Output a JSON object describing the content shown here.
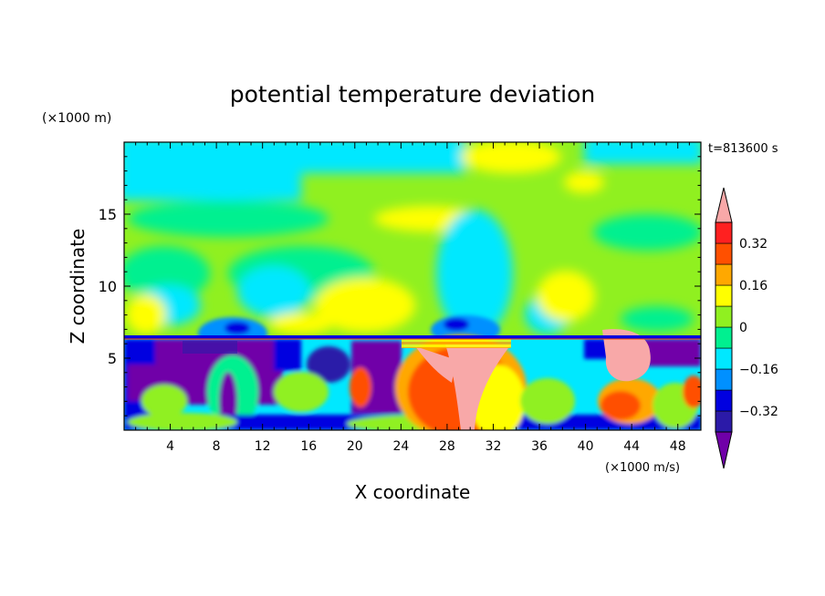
{
  "chart_data": {
    "type": "heatmap",
    "title": "potential temperature deviation",
    "xlabel": "X coordinate",
    "ylabel": "Z coordinate",
    "x_unit": "(×1000 m/s)",
    "y_unit": "(×1000 m)",
    "time_label": "t=813600 s",
    "xlim": [
      0,
      50
    ],
    "ylim": [
      0,
      20
    ],
    "x_ticks": [
      4,
      8,
      12,
      16,
      20,
      24,
      28,
      32,
      36,
      40,
      44,
      48
    ],
    "y_ticks": [
      5,
      10,
      15
    ],
    "colorbar": {
      "levels": [
        -0.4,
        -0.32,
        -0.24,
        -0.16,
        -0.08,
        0,
        0.08,
        0.16,
        0.24,
        0.32,
        0.4
      ],
      "tick_labels": [
        "0.32",
        "0.16",
        "0",
        "−0.16",
        "−0.32"
      ],
      "tick_values": [
        0.32,
        0.16,
        0,
        -0.16,
        -0.32
      ],
      "colors": [
        "#7000a8",
        "#2b1aa8",
        "#0000e0",
        "#0090ff",
        "#00e8ff",
        "#00f090",
        "#90f020",
        "#ffff00",
        "#ffa800",
        "#ff5000",
        "#ff2020",
        "#f8a8a8"
      ],
      "extend": "both"
    }
  }
}
